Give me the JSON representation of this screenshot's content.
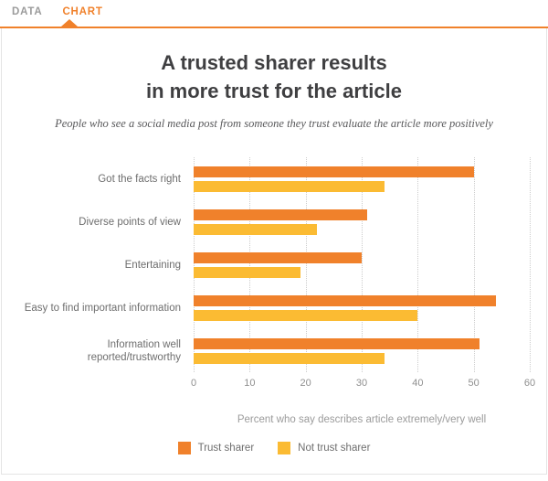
{
  "tabs": {
    "data_label": "DATA",
    "chart_label": "CHART"
  },
  "header": {
    "title_line1": "A trusted sharer results",
    "title_line2": "in more trust for the article",
    "subtitle": "People who see a social media post from someone they trust evaluate the article more positively"
  },
  "chart_data": {
    "type": "bar",
    "orientation": "horizontal",
    "categories": [
      "Got the facts right",
      "Diverse points of view",
      "Entertaining",
      "Easy to find important information",
      "Information well\nreported/trustworthy"
    ],
    "series": [
      {
        "name": "Trust sharer",
        "color": "#F0812B",
        "values": [
          50,
          31,
          30,
          54,
          51
        ]
      },
      {
        "name": "Not trust sharer",
        "color": "#FBBB33",
        "values": [
          34,
          22,
          19,
          40,
          34
        ]
      }
    ],
    "xlabel": "Percent who say describes article extremely/very well",
    "xticks": [
      0,
      10,
      20,
      30,
      40,
      50,
      60
    ],
    "xlim": [
      0,
      60
    ],
    "grid": "dotted-vertical",
    "legend_position": "bottom-center"
  },
  "colors": {
    "accent_orange": "#F0812B",
    "series_yellow": "#FBBB33",
    "gridline": "#CCCCCC",
    "panel_border": "#E4E4E4"
  }
}
